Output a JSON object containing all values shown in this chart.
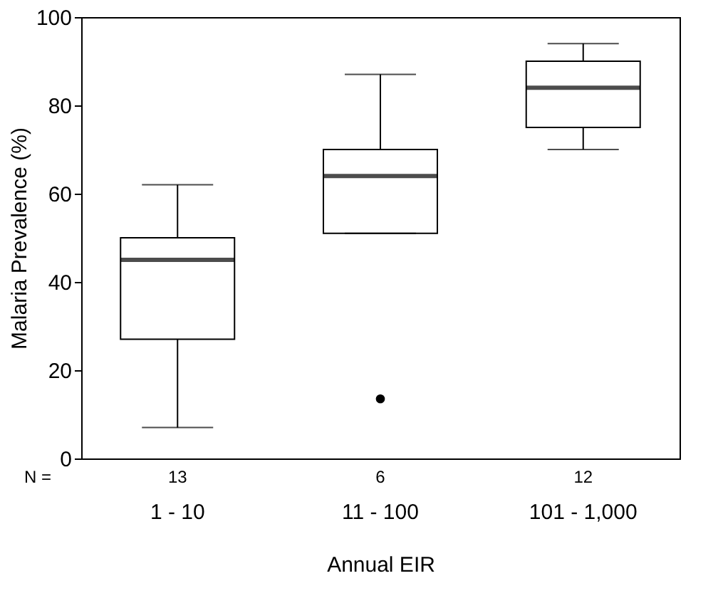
{
  "chart_data": {
    "type": "box",
    "xlabel": "Annual EIR",
    "ylabel": "Malaria Prevalence (%)",
    "categories": [
      "1 - 10",
      "11 - 100",
      "101 - 1,000"
    ],
    "boxes": [
      {
        "low": 7,
        "q1": 27,
        "median": 45,
        "q3": 50,
        "high": 62
      },
      {
        "low": 51,
        "q1": 51,
        "median": 64,
        "q3": 70,
        "high": 87,
        "outliers": [
          13.5
        ]
      },
      {
        "low": 70,
        "q1": 75,
        "median": 84,
        "q3": 90,
        "high": 94
      }
    ],
    "ylim": [
      0,
      100
    ],
    "yticks": [
      0,
      20,
      40,
      60,
      80,
      100
    ],
    "grid": false,
    "annotations": [
      "N =",
      "13",
      "6",
      "12"
    ]
  }
}
